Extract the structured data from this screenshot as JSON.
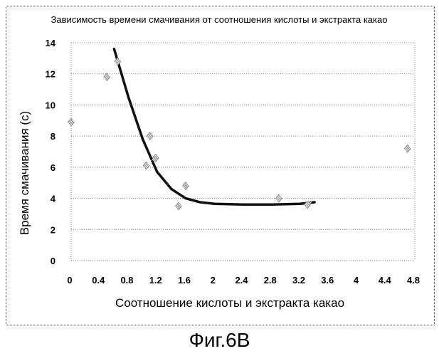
{
  "figure_caption": "Фиг.6B",
  "chart_data": {
    "type": "scatter",
    "title": "Зависимость времени смачивания от соотношения кислоты и экстракта какао",
    "xlabel": "Соотношение кислоты и экстракта какао",
    "ylabel": "Время смачивания (с)",
    "xlim": [
      0,
      4.8
    ],
    "ylim": [
      0,
      14
    ],
    "x_ticks": [
      "0",
      "0.4",
      "0.8",
      "1.2",
      "1.6",
      "2",
      "2.4",
      "2.8",
      "3.2",
      "3.6",
      "4",
      "4.4",
      "4.8"
    ],
    "y_ticks": [
      "0",
      "2",
      "4",
      "6",
      "8",
      "10",
      "12",
      "14"
    ],
    "grid": "horizontal dotted",
    "legend": "none",
    "marker_color": "#888888",
    "trend_color": "#111111",
    "points": [
      {
        "x": 0.0,
        "y": 8.9
      },
      {
        "x": 0.5,
        "y": 11.8
      },
      {
        "x": 0.65,
        "y": 12.8
      },
      {
        "x": 1.05,
        "y": 6.1
      },
      {
        "x": 1.1,
        "y": 8.0
      },
      {
        "x": 1.18,
        "y": 6.6
      },
      {
        "x": 1.5,
        "y": 3.5
      },
      {
        "x": 1.6,
        "y": 4.8
      },
      {
        "x": 2.9,
        "y": 4.0
      },
      {
        "x": 3.3,
        "y": 3.6
      },
      {
        "x": 4.7,
        "y": 7.2
      }
    ],
    "trendline": [
      {
        "x": 0.6,
        "y": 13.6
      },
      {
        "x": 0.8,
        "y": 10.5
      },
      {
        "x": 1.0,
        "y": 7.8
      },
      {
        "x": 1.2,
        "y": 5.7
      },
      {
        "x": 1.4,
        "y": 4.6
      },
      {
        "x": 1.6,
        "y": 4.0
      },
      {
        "x": 1.8,
        "y": 3.75
      },
      {
        "x": 2.0,
        "y": 3.65
      },
      {
        "x": 2.4,
        "y": 3.6
      },
      {
        "x": 2.8,
        "y": 3.6
      },
      {
        "x": 3.2,
        "y": 3.65
      },
      {
        "x": 3.4,
        "y": 3.75
      }
    ]
  }
}
